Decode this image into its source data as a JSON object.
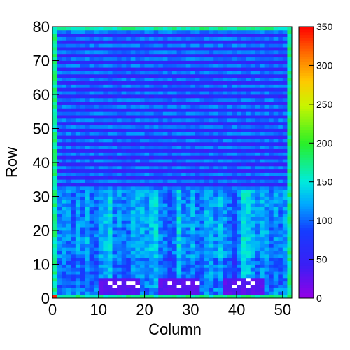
{
  "chart_data": {
    "type": "heatmap",
    "title": "",
    "xlabel": "Column",
    "ylabel": "Row",
    "xlim": [
      0,
      52
    ],
    "ylim": [
      0,
      80
    ],
    "x_ticks": [
      "0",
      "10",
      "20",
      "30",
      "40",
      "50"
    ],
    "y_ticks": [
      "0",
      "10",
      "20",
      "30",
      "40",
      "50",
      "60",
      "70",
      "80"
    ],
    "colorbar": {
      "range": [
        0,
        350
      ],
      "ticks": [
        "0",
        "50",
        "100",
        "150",
        "200",
        "250",
        "300",
        "350"
      ]
    },
    "grid": false,
    "ncols": 52,
    "nrows": 80,
    "description_regions": [
      {
        "name": "upper-rows",
        "rows": [
          32,
          80
        ],
        "value_even": 105,
        "value_odd": 50
      },
      {
        "name": "lower-rows",
        "rows": [
          3,
          32
        ],
        "value_mean": 120
      },
      {
        "name": "border",
        "value": 170
      },
      {
        "name": "dead-patch-1",
        "cols": [
          10,
          19
        ],
        "rows": [
          1,
          6
        ],
        "value": 25
      },
      {
        "name": "dead-patch-2",
        "cols": [
          23,
          32
        ],
        "rows": [
          1,
          6
        ],
        "value": 25
      },
      {
        "name": "dead-patch-3",
        "cols": [
          37,
          46
        ],
        "rows": [
          1,
          6
        ],
        "value": 25
      }
    ]
  }
}
